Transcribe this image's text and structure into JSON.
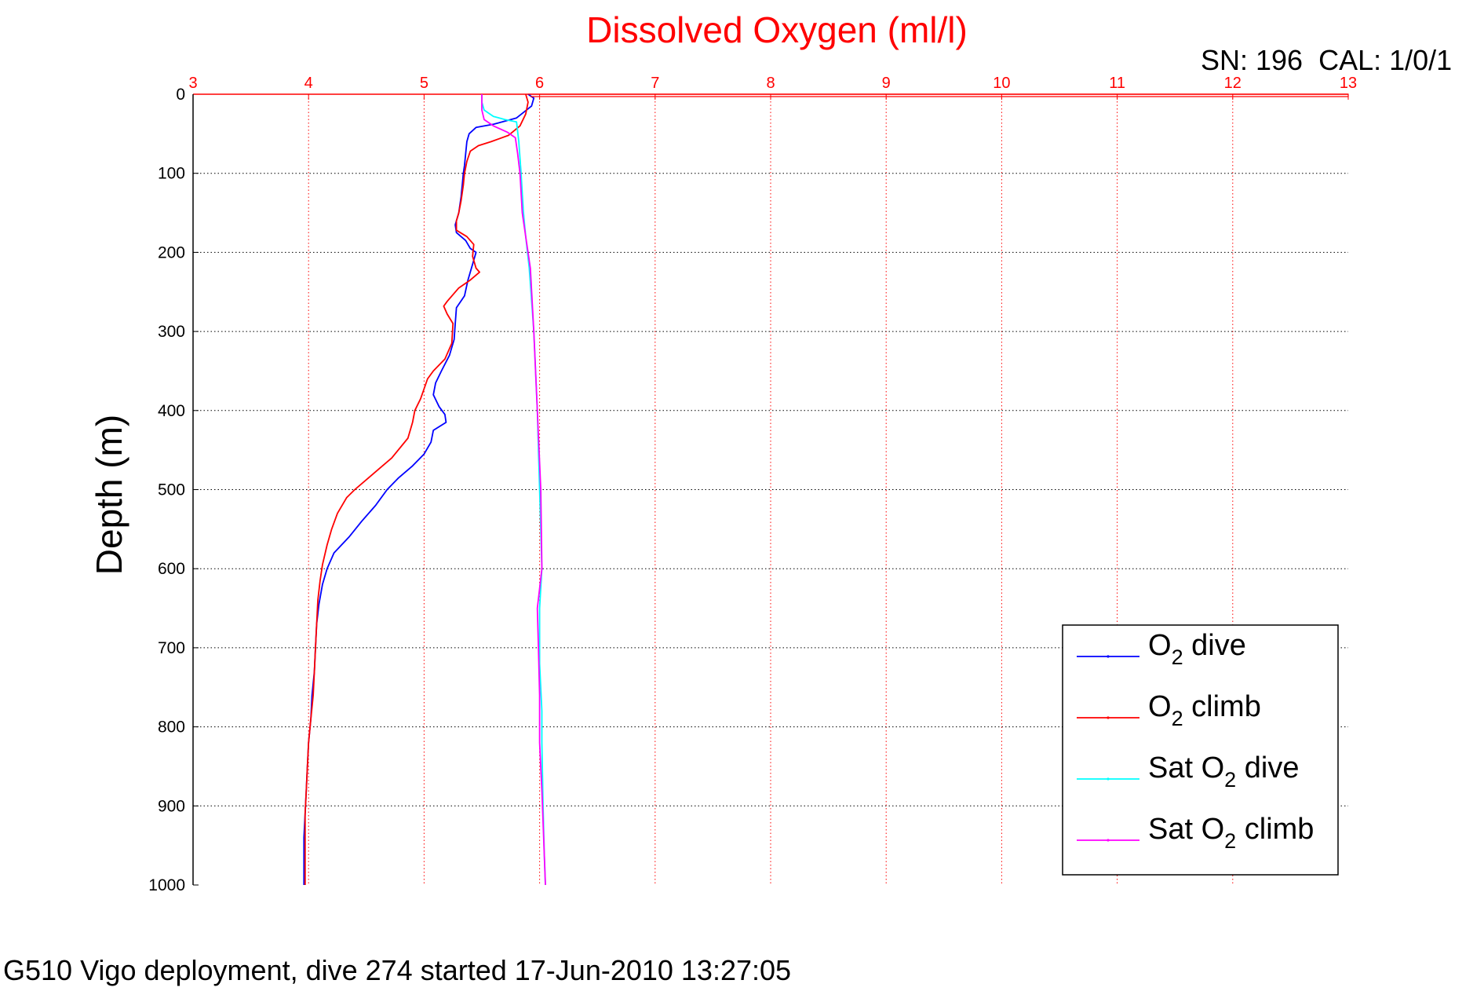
{
  "chart_data": {
    "type": "line",
    "title": "Dissolved Oxygen (ml/l)",
    "ylabel": "Depth (m)",
    "xlabel": "",
    "xlim": [
      3,
      13
    ],
    "ylim": [
      0,
      1000
    ],
    "y_reversed": true,
    "x_axis_position": "top",
    "grid": true,
    "legend_position": "bottom-right",
    "x_ticks": [
      3,
      4,
      5,
      6,
      7,
      8,
      9,
      10,
      11,
      12,
      13
    ],
    "y_ticks": [
      0,
      100,
      200,
      300,
      400,
      500,
      600,
      700,
      800,
      900,
      1000
    ],
    "annotation": "SN: 196  CAL: 1/0/1",
    "footer": "G510 Vigo deployment, dive 274 started 17-Jun-2010 13:27:05",
    "series": [
      {
        "name": "O2 dive",
        "legend_main": "O",
        "legend_sub": "2",
        "legend_rest": " dive",
        "color": "#0000ff",
        "points": [
          [
            5.9,
            0
          ],
          [
            5.95,
            5
          ],
          [
            5.93,
            15
          ],
          [
            5.8,
            30
          ],
          [
            5.6,
            38
          ],
          [
            5.45,
            42
          ],
          [
            5.39,
            50
          ],
          [
            5.37,
            60
          ],
          [
            5.36,
            75
          ],
          [
            5.35,
            90
          ],
          [
            5.34,
            100
          ],
          [
            5.33,
            115
          ],
          [
            5.32,
            130
          ],
          [
            5.3,
            150
          ],
          [
            5.27,
            165
          ],
          [
            5.28,
            175
          ],
          [
            5.36,
            185
          ],
          [
            5.4,
            195
          ],
          [
            5.45,
            200
          ],
          [
            5.42,
            215
          ],
          [
            5.38,
            235
          ],
          [
            5.35,
            255
          ],
          [
            5.28,
            270
          ],
          [
            5.27,
            290
          ],
          [
            5.26,
            310
          ],
          [
            5.22,
            330
          ],
          [
            5.15,
            350
          ],
          [
            5.1,
            365
          ],
          [
            5.08,
            380
          ],
          [
            5.13,
            395
          ],
          [
            5.18,
            405
          ],
          [
            5.19,
            415
          ],
          [
            5.08,
            425
          ],
          [
            5.06,
            440
          ],
          [
            5.0,
            455
          ],
          [
            4.9,
            470
          ],
          [
            4.78,
            485
          ],
          [
            4.68,
            500
          ],
          [
            4.58,
            520
          ],
          [
            4.46,
            540
          ],
          [
            4.35,
            560
          ],
          [
            4.22,
            580
          ],
          [
            4.16,
            600
          ],
          [
            4.12,
            620
          ],
          [
            4.09,
            645
          ],
          [
            4.07,
            670
          ],
          [
            4.06,
            700
          ],
          [
            4.05,
            730
          ],
          [
            4.03,
            760
          ],
          [
            4.02,
            790
          ],
          [
            4.0,
            820
          ],
          [
            3.99,
            850
          ],
          [
            3.98,
            880
          ],
          [
            3.97,
            910
          ],
          [
            3.96,
            940
          ],
          [
            3.96,
            970
          ],
          [
            3.96,
            1000
          ]
        ]
      },
      {
        "name": "O2 climb",
        "legend_main": "O",
        "legend_sub": "2",
        "legend_rest": " climb",
        "color": "#ff0000",
        "points": [
          [
            5.88,
            0
          ],
          [
            5.9,
            10
          ],
          [
            5.88,
            25
          ],
          [
            5.83,
            40
          ],
          [
            5.73,
            52
          ],
          [
            5.58,
            60
          ],
          [
            5.47,
            65
          ],
          [
            5.4,
            72
          ],
          [
            5.37,
            85
          ],
          [
            5.35,
            100
          ],
          [
            5.34,
            115
          ],
          [
            5.32,
            135
          ],
          [
            5.3,
            150
          ],
          [
            5.28,
            160
          ],
          [
            5.28,
            172
          ],
          [
            5.37,
            180
          ],
          [
            5.43,
            190
          ],
          [
            5.42,
            205
          ],
          [
            5.45,
            220
          ],
          [
            5.48,
            225
          ],
          [
            5.4,
            235
          ],
          [
            5.3,
            245
          ],
          [
            5.2,
            262
          ],
          [
            5.17,
            268
          ],
          [
            5.2,
            278
          ],
          [
            5.25,
            290
          ],
          [
            5.24,
            315
          ],
          [
            5.18,
            335
          ],
          [
            5.08,
            350
          ],
          [
            5.03,
            360
          ],
          [
            4.97,
            385
          ],
          [
            4.92,
            400
          ],
          [
            4.9,
            415
          ],
          [
            4.86,
            435
          ],
          [
            4.72,
            460
          ],
          [
            4.6,
            475
          ],
          [
            4.52,
            485
          ],
          [
            4.4,
            500
          ],
          [
            4.33,
            510
          ],
          [
            4.25,
            530
          ],
          [
            4.2,
            550
          ],
          [
            4.16,
            570
          ],
          [
            4.12,
            595
          ],
          [
            4.1,
            615
          ],
          [
            4.08,
            640
          ],
          [
            4.07,
            670
          ],
          [
            4.06,
            700
          ],
          [
            4.05,
            730
          ],
          [
            4.04,
            760
          ],
          [
            4.02,
            790
          ],
          [
            4.0,
            820
          ],
          [
            3.99,
            850
          ],
          [
            3.98,
            880
          ],
          [
            3.97,
            910
          ],
          [
            3.97,
            940
          ],
          [
            3.97,
            970
          ],
          [
            3.97,
            1000
          ],
          [
            3.97,
            1000
          ]
        ],
        "surface_spike": [
          [
            5.9,
            0
          ],
          [
            13.0,
            0
          ],
          [
            13.0,
            3
          ],
          [
            5.92,
            3
          ]
        ]
      },
      {
        "name": "Sat O2 dive",
        "legend_main": "Sat O",
        "legend_sub": "2",
        "legend_rest": " dive",
        "color": "#00ffff",
        "points": [
          [
            5.5,
            0
          ],
          [
            5.5,
            10
          ],
          [
            5.52,
            20
          ],
          [
            5.6,
            28
          ],
          [
            5.7,
            32
          ],
          [
            5.8,
            35
          ],
          [
            5.82,
            60
          ],
          [
            5.84,
            100
          ],
          [
            5.86,
            150
          ],
          [
            5.88,
            180
          ],
          [
            5.91,
            220
          ],
          [
            5.95,
            300
          ],
          [
            5.98,
            400
          ],
          [
            6.0,
            500
          ],
          [
            6.02,
            600
          ],
          [
            6.0,
            650
          ],
          [
            6.0,
            720
          ],
          [
            6.02,
            780
          ],
          [
            6.02,
            820
          ],
          [
            6.03,
            900
          ],
          [
            6.04,
            960
          ],
          [
            6.05,
            1000
          ]
        ]
      },
      {
        "name": "Sat O2 climb",
        "legend_main": "Sat O",
        "legend_sub": "2",
        "legend_rest": " climb",
        "color": "#ff00ff",
        "points": [
          [
            5.5,
            0
          ],
          [
            5.5,
            10
          ],
          [
            5.5,
            20
          ],
          [
            5.52,
            32
          ],
          [
            5.6,
            40
          ],
          [
            5.72,
            48
          ],
          [
            5.79,
            55
          ],
          [
            5.81,
            75
          ],
          [
            5.83,
            100
          ],
          [
            5.85,
            150
          ],
          [
            5.88,
            180
          ],
          [
            5.92,
            220
          ],
          [
            5.95,
            300
          ],
          [
            5.98,
            400
          ],
          [
            6.01,
            500
          ],
          [
            6.02,
            600
          ],
          [
            5.98,
            650
          ],
          [
            5.99,
            700
          ],
          [
            6.0,
            760
          ],
          [
            6.0,
            820
          ],
          [
            6.02,
            880
          ],
          [
            6.04,
            960
          ],
          [
            6.05,
            1000
          ]
        ]
      }
    ]
  }
}
